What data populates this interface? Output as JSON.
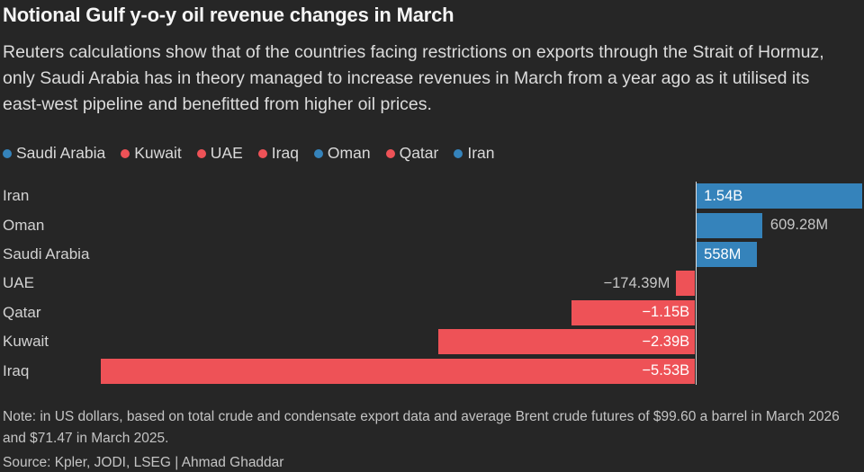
{
  "header": {
    "title": "Notional Gulf y-o-y oil revenue changes in March",
    "subtitle": "Reuters calculations show that of the countries facing restrictions on exports through the Strait of Hormuz, only Saudi Arabia has in theory managed to increase revenues in March from a year ago as it utilised its east-west pipeline and benefitted from higher oil prices."
  },
  "colors": {
    "background": "#262626",
    "positive_bar": "#3583bb",
    "negative_bar": "#ee5257",
    "axis_line": "#dcdcdc",
    "inside_label": "#ffffff",
    "outside_label": "#c6c6c6"
  },
  "chart_data": {
    "type": "bar",
    "orientation": "horizontal",
    "title": "Notional Gulf y-o-y oil revenue changes in March",
    "unit": "US dollars",
    "xlim": [
      -5.53,
      1.54
    ],
    "grid": false,
    "legend_position": "top",
    "legend": [
      {
        "label": "Saudi Arabia",
        "color": "#3583bb"
      },
      {
        "label": "Kuwait",
        "color": "#ee5257"
      },
      {
        "label": "UAE",
        "color": "#ee5257"
      },
      {
        "label": "Iraq",
        "color": "#ee5257"
      },
      {
        "label": "Oman",
        "color": "#3583bb"
      },
      {
        "label": "Qatar",
        "color": "#ee5257"
      },
      {
        "label": "Iran",
        "color": "#3583bb"
      }
    ],
    "bars": [
      {
        "category": "Iran",
        "value_billions": 1.54,
        "label": "1.54B",
        "color": "#3583bb",
        "label_inside": true
      },
      {
        "category": "Oman",
        "value_billions": 0.60928,
        "label": "609.28M",
        "color": "#3583bb",
        "label_inside": false
      },
      {
        "category": "Saudi Arabia",
        "value_billions": 0.558,
        "label": "558M",
        "color": "#3583bb",
        "label_inside": true
      },
      {
        "category": "UAE",
        "value_billions": -0.17439,
        "label": "−174.39M",
        "color": "#ee5257",
        "label_inside": false
      },
      {
        "category": "Qatar",
        "value_billions": -1.15,
        "label": "−1.15B",
        "color": "#ee5257",
        "label_inside": true
      },
      {
        "category": "Kuwait",
        "value_billions": -2.39,
        "label": "−2.39B",
        "color": "#ee5257",
        "label_inside": true
      },
      {
        "category": "Iraq",
        "value_billions": -5.53,
        "label": "−5.53B",
        "color": "#ee5257",
        "label_inside": true
      }
    ]
  },
  "footer": {
    "note": "Note: in US dollars, based on total crude and condensate export data and average Brent crude futures of $99.60 a barrel in March 2026 and $71.47 in March 2025.",
    "source": "Source: Kpler, JODI, LSEG | Ahmad Ghaddar"
  }
}
